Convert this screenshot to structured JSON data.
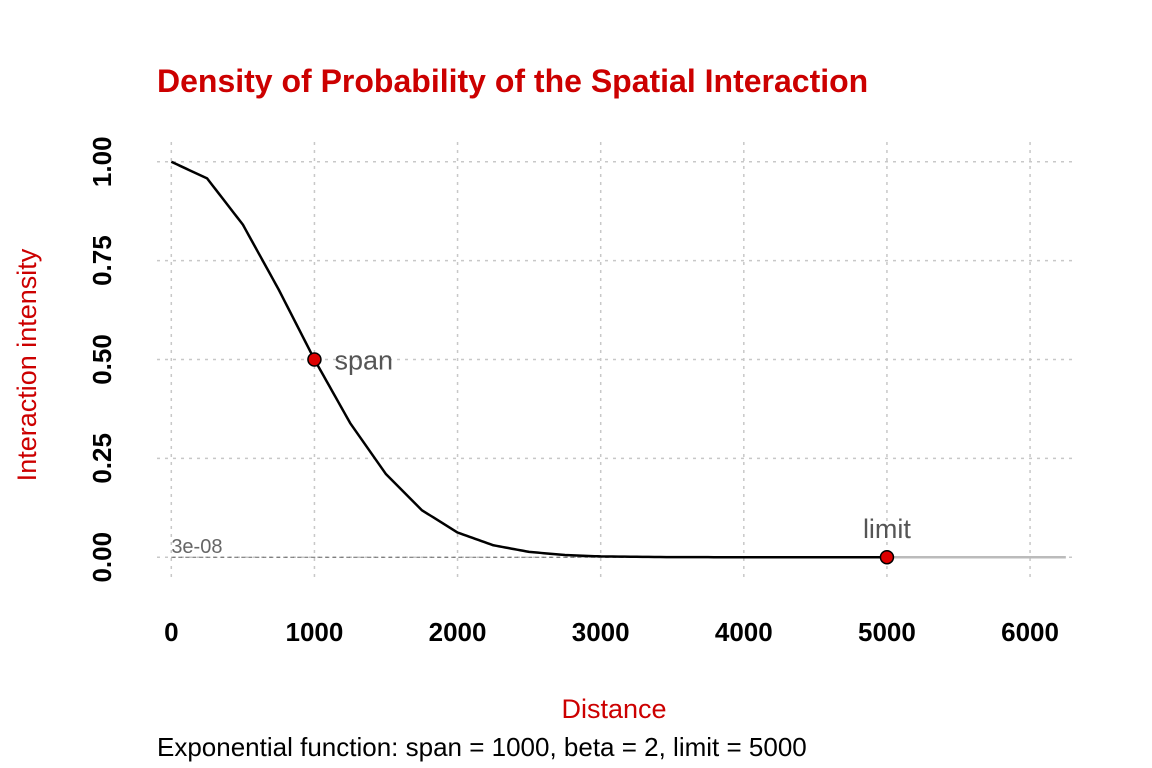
{
  "colors": {
    "title": "#cc0000",
    "axis_title": "#cc0000",
    "curve": "#000000",
    "extension": "#bbbbbb",
    "point_fill": "#dd0000",
    "point_stroke": "#000000",
    "annotation": "#555555",
    "threshold_line": "#666666"
  },
  "chart_data": {
    "type": "line",
    "title": "Density of Probability of the Spatial Interaction",
    "xlabel": "Distance",
    "ylabel": "Interaction intensity",
    "caption": "Exponential function: span = 1000, beta = 2, limit = 5000",
    "xlim": [
      -100,
      6300
    ],
    "ylim": [
      -0.05,
      1.05
    ],
    "x_ticks": [
      0,
      1000,
      2000,
      3000,
      4000,
      5000,
      6000
    ],
    "x_tick_labels": [
      "0",
      "1000",
      "2000",
      "3000",
      "4000",
      "5000",
      "6000"
    ],
    "y_ticks": [
      0,
      0.25,
      0.5,
      0.75,
      1
    ],
    "y_tick_labels": [
      "0.00",
      "0.25",
      "0.50",
      "0.75",
      "1.00"
    ],
    "grid": true,
    "function": {
      "span": 1000,
      "beta": 2,
      "limit": 5000
    },
    "curve": {
      "x": [
        0,
        250,
        500,
        750,
        1000,
        1250,
        1500,
        1750,
        2000,
        2250,
        2500,
        2750,
        3000,
        3500,
        4000,
        4500,
        5000
      ],
      "y": [
        1.0,
        0.958,
        0.841,
        0.677,
        0.5,
        0.339,
        0.21,
        0.119,
        0.0625,
        0.0302,
        0.0135,
        0.00551,
        0.00205,
        0.0002,
        1.53e-05,
        9e-07,
        3e-08
      ]
    },
    "extension": {
      "x": [
        5000,
        6250
      ],
      "y": [
        0,
        0
      ]
    },
    "points": [
      {
        "label": "span",
        "x": 1000,
        "y": 0.5
      },
      {
        "label": "limit",
        "x": 5000,
        "y": 3e-08
      }
    ],
    "threshold": {
      "label": "3e-08",
      "value": 3e-08
    }
  }
}
